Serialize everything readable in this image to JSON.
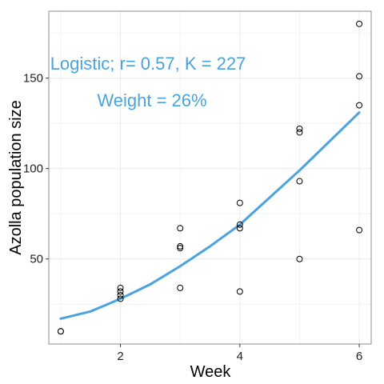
{
  "chart_data": {
    "type": "scatter",
    "xlabel": "Week",
    "ylabel": "Azolla population size",
    "xlim": [
      0.8,
      6.2
    ],
    "ylim": [
      3,
      187
    ],
    "x_ticks": [
      2,
      4,
      6
    ],
    "y_ticks": [
      50,
      100,
      150
    ],
    "grid": true,
    "colors": {
      "fit_line": "#4aa3df",
      "annotation": "#4aa3df",
      "points": "#000000",
      "grid": "#ebebeb",
      "frame": "#8c8c8c"
    },
    "annotations": [
      "Logistic; r= 0.57, K = 227",
      "Weight = 26%"
    ],
    "points": [
      {
        "x": 1,
        "y": 10
      },
      {
        "x": 1,
        "y": 10
      },
      {
        "x": 2,
        "y": 34
      },
      {
        "x": 2,
        "y": 32
      },
      {
        "x": 2,
        "y": 30
      },
      {
        "x": 2,
        "y": 28
      },
      {
        "x": 3,
        "y": 67
      },
      {
        "x": 3,
        "y": 57
      },
      {
        "x": 3,
        "y": 56
      },
      {
        "x": 3,
        "y": 34
      },
      {
        "x": 4,
        "y": 81
      },
      {
        "x": 4,
        "y": 69
      },
      {
        "x": 4,
        "y": 67
      },
      {
        "x": 4,
        "y": 32
      },
      {
        "x": 5,
        "y": 122
      },
      {
        "x": 5,
        "y": 120
      },
      {
        "x": 5,
        "y": 93
      },
      {
        "x": 5,
        "y": 50
      },
      {
        "x": 6,
        "y": 180
      },
      {
        "x": 6,
        "y": 151
      },
      {
        "x": 6,
        "y": 135
      },
      {
        "x": 6,
        "y": 66
      }
    ],
    "fit_line": [
      {
        "x": 1.0,
        "y": 17
      },
      {
        "x": 1.5,
        "y": 21
      },
      {
        "x": 2.0,
        "y": 28
      },
      {
        "x": 2.5,
        "y": 36
      },
      {
        "x": 3.0,
        "y": 46
      },
      {
        "x": 3.5,
        "y": 57
      },
      {
        "x": 4.0,
        "y": 69
      },
      {
        "x": 4.5,
        "y": 84
      },
      {
        "x": 5.0,
        "y": 99
      },
      {
        "x": 5.5,
        "y": 115
      },
      {
        "x": 6.0,
        "y": 131
      }
    ]
  }
}
